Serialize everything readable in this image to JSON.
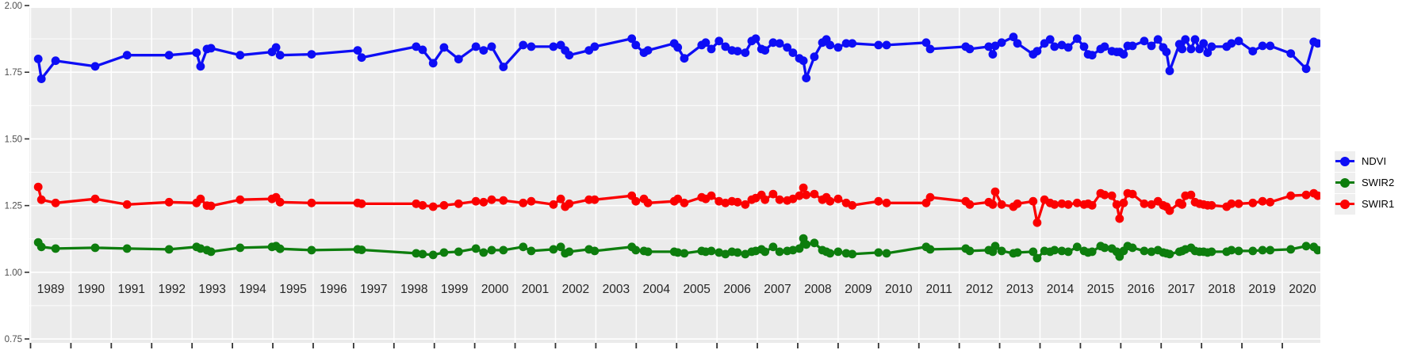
{
  "colors": {
    "panel_background": "#EBEBEB",
    "grid_line": "#FFFFFF",
    "axis_tick": "#333333",
    "y_tick_text": "#4D4D4D",
    "x_tick_text": "#262626",
    "legend_key_background": "#EFEFEF",
    "ndvi_blue": "#0D0DF5",
    "swir2_green": "#0D7D0D",
    "swir1_red": "#FB0000"
  },
  "y_axis": {
    "ticks": [
      {
        "label": "2.00",
        "value": 2.0
      },
      {
        "label": "1.75",
        "value": 1.75
      },
      {
        "label": "1.50",
        "value": 1.5
      },
      {
        "label": "1.25",
        "value": 1.25
      },
      {
        "label": "1.00",
        "value": 1.0
      },
      {
        "label": "0.75",
        "value": 0.75
      }
    ]
  },
  "x_axis": {
    "years": [
      "1989",
      "1990",
      "1991",
      "1992",
      "1993",
      "1994",
      "1995",
      "1996",
      "1997",
      "1998",
      "1999",
      "2000",
      "2001",
      "2002",
      "2003",
      "2004",
      "2005",
      "2006",
      "2007",
      "2008",
      "2009",
      "2010",
      "2011",
      "2012",
      "2013",
      "2014",
      "2015",
      "2016",
      "2017",
      "2018",
      "2019",
      "2020"
    ]
  },
  "legend": {
    "items": [
      {
        "label": "NDVI",
        "color": "#0D0DF5"
      },
      {
        "label": "SWIR2",
        "color": "#0D7D0D"
      },
      {
        "label": "SWIR1",
        "color": "#FB0000"
      }
    ]
  },
  "chart_data": {
    "type": "line",
    "title": "",
    "xlabel": "",
    "ylabel": "",
    "x_unit": "decimal year",
    "xlim": [
      1988.97,
      2020.97
    ],
    "ylim": [
      0.74,
      1.99
    ],
    "y_major_ticks": [
      0.75,
      1.0,
      1.25,
      1.5,
      1.75,
      2.0
    ],
    "y_minor_step": 0.125,
    "grid": "white major+minor horizontal, yearly vertical, on gray panel",
    "legend_position": "right-outside",
    "x": [
      1989.19,
      1989.27,
      1989.62,
      1990.6,
      1991.39,
      1992.43,
      1993.11,
      1993.21,
      1993.37,
      1993.47,
      1994.19,
      1994.98,
      1995.08,
      1995.18,
      1995.96,
      1997.1,
      1997.2,
      1998.55,
      1998.71,
      1998.97,
      1999.24,
      1999.6,
      2000.03,
      2000.22,
      2000.42,
      2000.71,
      2001.2,
      2001.4,
      2001.95,
      2002.13,
      2002.24,
      2002.34,
      2002.83,
      2002.97,
      2003.89,
      2003.99,
      2004.19,
      2004.29,
      2004.94,
      2005.03,
      2005.19,
      2005.62,
      2005.72,
      2005.86,
      2006.05,
      2006.21,
      2006.37,
      2006.51,
      2006.7,
      2006.86,
      2006.96,
      2007.1,
      2007.19,
      2007.39,
      2007.55,
      2007.74,
      2007.88,
      2008.04,
      2008.14,
      2008.21,
      2008.41,
      2008.61,
      2008.71,
      2008.8,
      2009.0,
      2009.2,
      2009.35,
      2010.0,
      2010.2,
      2011.18,
      2011.28,
      2012.16,
      2012.26,
      2012.73,
      2012.83,
      2012.89,
      2013.05,
      2013.34,
      2013.44,
      2013.83,
      2013.93,
      2014.11,
      2014.25,
      2014.36,
      2014.54,
      2014.7,
      2014.92,
      2015.09,
      2015.19,
      2015.29,
      2015.5,
      2015.6,
      2015.78,
      2015.9,
      2015.97,
      2016.07,
      2016.17,
      2016.29,
      2016.58,
      2016.76,
      2016.92,
      2017.05,
      2017.13,
      2017.21,
      2017.45,
      2017.52,
      2017.6,
      2017.74,
      2017.84,
      2017.95,
      2018.05,
      2018.15,
      2018.25,
      2018.62,
      2018.74,
      2018.92,
      2019.27,
      2019.51,
      2019.7,
      2020.21,
      2020.59,
      2020.78,
      2020.88
    ],
    "series": [
      {
        "name": "NDVI",
        "color": "#0D0DF5",
        "values": [
          1.8,
          1.725,
          1.793,
          1.772,
          1.814,
          1.814,
          1.823,
          1.772,
          1.837,
          1.84,
          1.814,
          1.826,
          1.843,
          1.814,
          1.817,
          1.832,
          1.805,
          1.846,
          1.834,
          1.784,
          1.843,
          1.799,
          1.846,
          1.832,
          1.846,
          1.77,
          1.852,
          1.846,
          1.846,
          1.852,
          1.832,
          1.814,
          1.832,
          1.846,
          1.876,
          1.852,
          1.823,
          1.832,
          1.858,
          1.843,
          1.802,
          1.852,
          1.861,
          1.837,
          1.867,
          1.846,
          1.832,
          1.829,
          1.823,
          1.867,
          1.876,
          1.837,
          1.832,
          1.861,
          1.858,
          1.843,
          1.823,
          1.802,
          1.793,
          1.728,
          1.808,
          1.861,
          1.873,
          1.852,
          1.843,
          1.858,
          1.858,
          1.852,
          1.852,
          1.861,
          1.837,
          1.846,
          1.837,
          1.846,
          1.817,
          1.849,
          1.861,
          1.882,
          1.858,
          1.817,
          1.829,
          1.858,
          1.873,
          1.846,
          1.852,
          1.843,
          1.876,
          1.846,
          1.817,
          1.814,
          1.837,
          1.846,
          1.829,
          1.826,
          1.826,
          1.817,
          1.849,
          1.849,
          1.867,
          1.849,
          1.873,
          1.843,
          1.826,
          1.755,
          1.855,
          1.837,
          1.873,
          1.837,
          1.873,
          1.837,
          1.858,
          1.823,
          1.846,
          1.846,
          1.858,
          1.867,
          1.829,
          1.849,
          1.849,
          1.82,
          1.763,
          1.864,
          1.858
        ]
      },
      {
        "name": "SWIR2",
        "color": "#0D7D0D",
        "values": [
          1.112,
          1.095,
          1.089,
          1.092,
          1.089,
          1.086,
          1.095,
          1.089,
          1.083,
          1.077,
          1.092,
          1.095,
          1.098,
          1.088,
          1.083,
          1.086,
          1.084,
          1.071,
          1.068,
          1.065,
          1.074,
          1.077,
          1.089,
          1.074,
          1.083,
          1.083,
          1.095,
          1.08,
          1.086,
          1.095,
          1.071,
          1.077,
          1.086,
          1.08,
          1.095,
          1.083,
          1.08,
          1.077,
          1.077,
          1.074,
          1.071,
          1.08,
          1.077,
          1.08,
          1.074,
          1.068,
          1.077,
          1.074,
          1.068,
          1.077,
          1.08,
          1.086,
          1.077,
          1.095,
          1.077,
          1.08,
          1.083,
          1.089,
          1.127,
          1.104,
          1.11,
          1.083,
          1.077,
          1.071,
          1.077,
          1.071,
          1.068,
          1.074,
          1.071,
          1.095,
          1.086,
          1.089,
          1.08,
          1.083,
          1.077,
          1.098,
          1.08,
          1.071,
          1.074,
          1.077,
          1.053,
          1.08,
          1.077,
          1.083,
          1.08,
          1.077,
          1.095,
          1.08,
          1.074,
          1.077,
          1.098,
          1.092,
          1.089,
          1.077,
          1.059,
          1.08,
          1.098,
          1.092,
          1.08,
          1.077,
          1.083,
          1.074,
          1.071,
          1.068,
          1.077,
          1.08,
          1.086,
          1.092,
          1.08,
          1.077,
          1.077,
          1.074,
          1.077,
          1.077,
          1.083,
          1.08,
          1.08,
          1.083,
          1.083,
          1.086,
          1.098,
          1.095,
          1.083
        ]
      },
      {
        "name": "SWIR1",
        "color": "#FB0000",
        "values": [
          1.32,
          1.272,
          1.26,
          1.275,
          1.254,
          1.263,
          1.26,
          1.275,
          1.25,
          1.249,
          1.272,
          1.275,
          1.281,
          1.263,
          1.26,
          1.26,
          1.257,
          1.257,
          1.251,
          1.246,
          1.251,
          1.257,
          1.266,
          1.263,
          1.272,
          1.269,
          1.26,
          1.266,
          1.254,
          1.275,
          1.246,
          1.257,
          1.272,
          1.272,
          1.287,
          1.266,
          1.275,
          1.26,
          1.266,
          1.275,
          1.26,
          1.281,
          1.275,
          1.287,
          1.266,
          1.26,
          1.266,
          1.263,
          1.254,
          1.272,
          1.278,
          1.29,
          1.272,
          1.293,
          1.272,
          1.269,
          1.275,
          1.287,
          1.317,
          1.29,
          1.293,
          1.272,
          1.281,
          1.266,
          1.275,
          1.26,
          1.251,
          1.266,
          1.26,
          1.26,
          1.281,
          1.266,
          1.254,
          1.263,
          1.254,
          1.302,
          1.254,
          1.246,
          1.257,
          1.266,
          1.186,
          1.272,
          1.26,
          1.254,
          1.257,
          1.254,
          1.26,
          1.254,
          1.257,
          1.251,
          1.296,
          1.29,
          1.287,
          1.254,
          1.201,
          1.26,
          1.296,
          1.293,
          1.257,
          1.254,
          1.266,
          1.251,
          1.246,
          1.231,
          1.26,
          1.254,
          1.287,
          1.29,
          1.263,
          1.257,
          1.254,
          1.251,
          1.251,
          1.246,
          1.257,
          1.257,
          1.26,
          1.266,
          1.263,
          1.287,
          1.29,
          1.296,
          1.287
        ]
      }
    ]
  }
}
